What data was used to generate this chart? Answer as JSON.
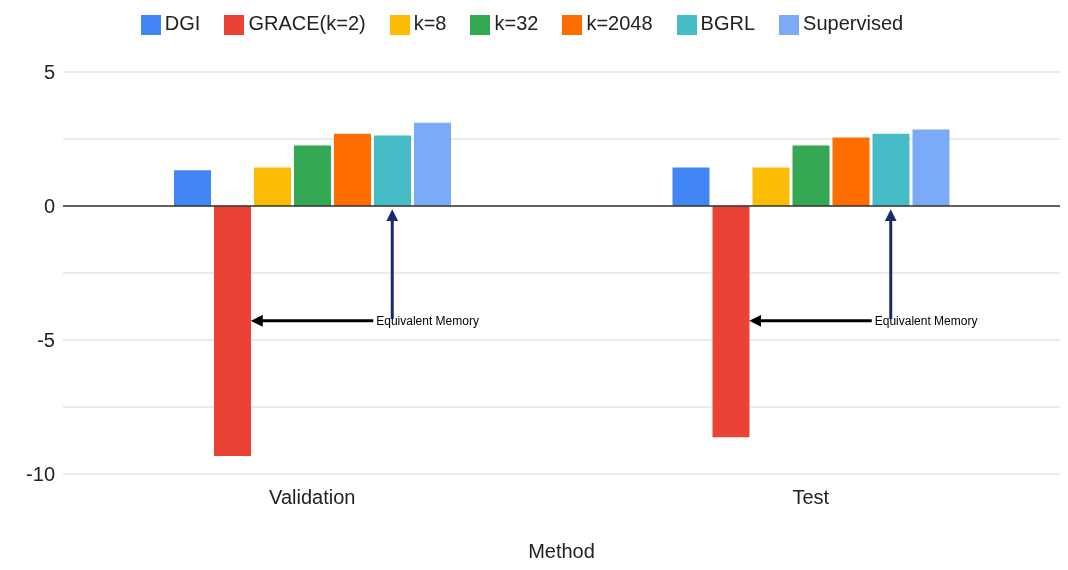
{
  "chart_data": {
    "type": "bar",
    "xlabel": "Method",
    "categories": [
      "Validation",
      "Test"
    ],
    "series": [
      {
        "name": "DGI",
        "color": "#4285f4",
        "values": [
          1.33,
          1.44
        ]
      },
      {
        "name": "GRACE(k=2)",
        "color": "#ea4335",
        "values": [
          -9.33,
          -8.63
        ]
      },
      {
        "name": "k=8",
        "color": "#fbbc04",
        "values": [
          1.44,
          1.44
        ]
      },
      {
        "name": "k=32",
        "color": "#34a853",
        "values": [
          2.26,
          2.26
        ]
      },
      {
        "name": "k=2048",
        "color": "#ff6d01",
        "values": [
          2.7,
          2.56
        ]
      },
      {
        "name": "BGRL",
        "color": "#46bdc6",
        "values": [
          2.63,
          2.7
        ]
      },
      {
        "name": "Supervised",
        "color": "#7baaf7",
        "values": [
          3.11,
          2.85
        ]
      }
    ],
    "ylim": [
      -10,
      5
    ],
    "yticks": [
      5,
      {
        "value": 2.5,
        "label": null
      },
      0,
      {
        "value": -2.5,
        "label": null
      },
      -5,
      {
        "value": -7.5,
        "label": null
      },
      -10
    ],
    "grid": "y",
    "legend": "top",
    "ref_lines": [
      {
        "axis": "y",
        "value": 0,
        "color": "#333333"
      }
    ],
    "annotations": [
      "Equivalent Memory",
      "Equivalent Memory"
    ]
  }
}
